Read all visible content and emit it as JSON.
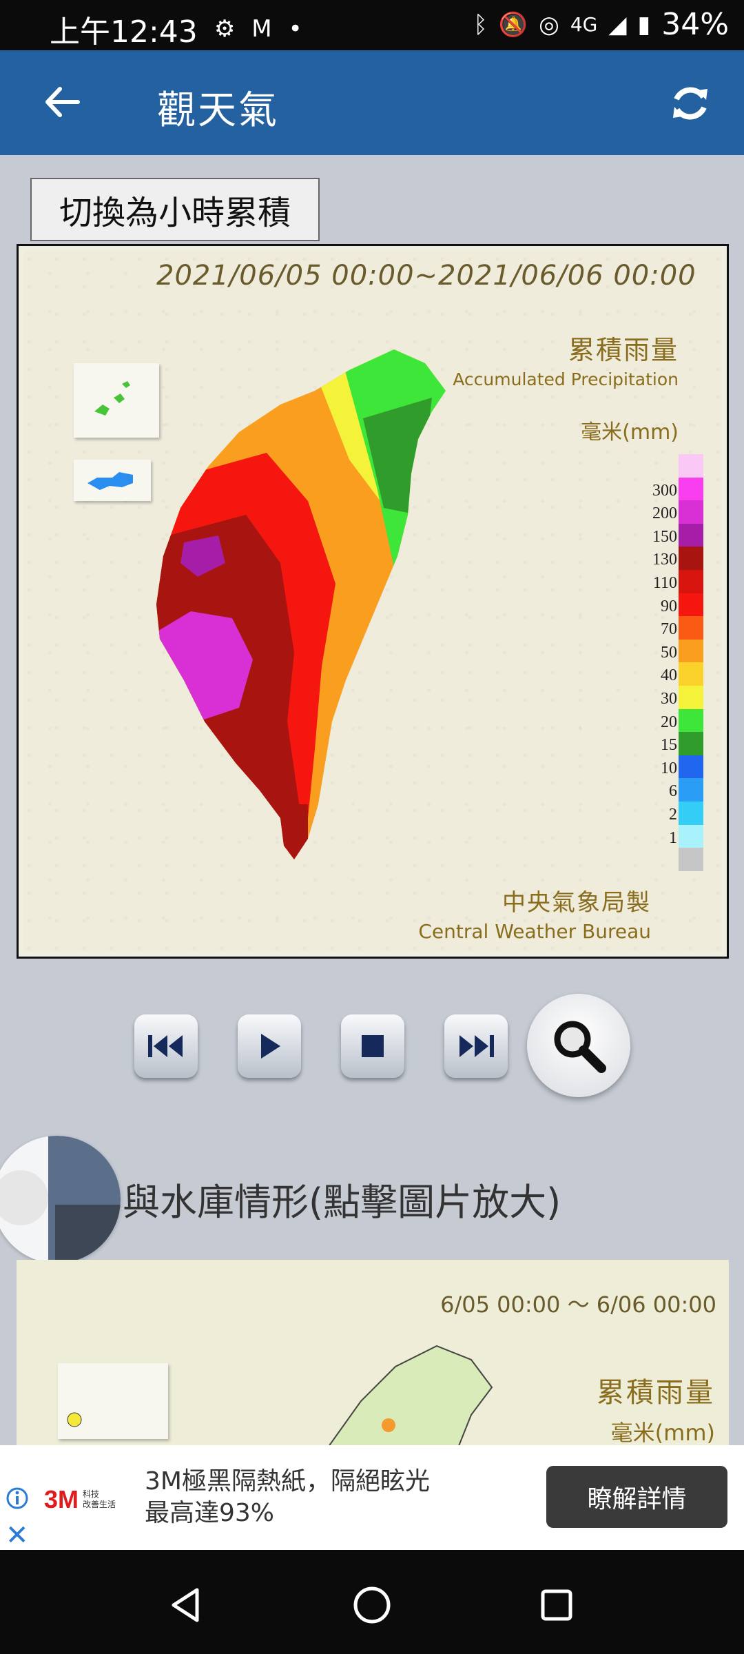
{
  "status_bar": {
    "time": "上午12:43",
    "battery": "34%",
    "network": "4G"
  },
  "app_bar": {
    "title": "觀天氣"
  },
  "toggle_button": "切換為小時累積",
  "rain_map": {
    "date_range": "2021/06/05 00:00~2021/06/06 00:00",
    "legend_title_zh": "累積雨量",
    "legend_title_en": "Accumulated Precipitation",
    "unit": "毫米(mm)",
    "credit_zh": "中央氣象局製",
    "credit_en": "Central Weather Bureau",
    "legend": [
      {
        "label": "",
        "color": "#f9c8f4"
      },
      {
        "label": "300",
        "color": "#f93ef0"
      },
      {
        "label": "200",
        "color": "#d830d4"
      },
      {
        "label": "150",
        "color": "#a61ea8"
      },
      {
        "label": "130",
        "color": "#a8140f"
      },
      {
        "label": "110",
        "color": "#d8140f"
      },
      {
        "label": "90",
        "color": "#f5160f"
      },
      {
        "label": "70",
        "color": "#fa5a14"
      },
      {
        "label": "50",
        "color": "#f99e1e"
      },
      {
        "label": "40",
        "color": "#fbd12b"
      },
      {
        "label": "30",
        "color": "#f5f23a"
      },
      {
        "label": "20",
        "color": "#3ee63a"
      },
      {
        "label": "15",
        "color": "#2f9c2c"
      },
      {
        "label": "10",
        "color": "#2166ef"
      },
      {
        "label": "6",
        "color": "#2a9ef7"
      },
      {
        "label": "2",
        "color": "#34cdf5"
      },
      {
        "label": "1",
        "color": "#a9f2fb"
      },
      {
        "label": "",
        "color": "#c6c6c6"
      }
    ]
  },
  "controls": {
    "prev_icon": "skip-back-icon",
    "play_icon": "play-icon",
    "stop_icon": "stop-icon",
    "next_icon": "skip-forward-icon",
    "zoom_icon": "search-icon"
  },
  "section": {
    "title": "與水庫情形(點擊圖片放大)"
  },
  "reservoir_map": {
    "date_range": "6/05 00:00 ～ 6/06 00:00",
    "legend_title": "累積雨量",
    "unit": "毫米(mm)"
  },
  "ad": {
    "brand": "3M",
    "brand_sub_1": "科技",
    "brand_sub_2": "改善生活",
    "line1": "3M極黑隔熱紙，隔絕眩光",
    "line2": "最高達93%",
    "cta": "瞭解詳情"
  }
}
